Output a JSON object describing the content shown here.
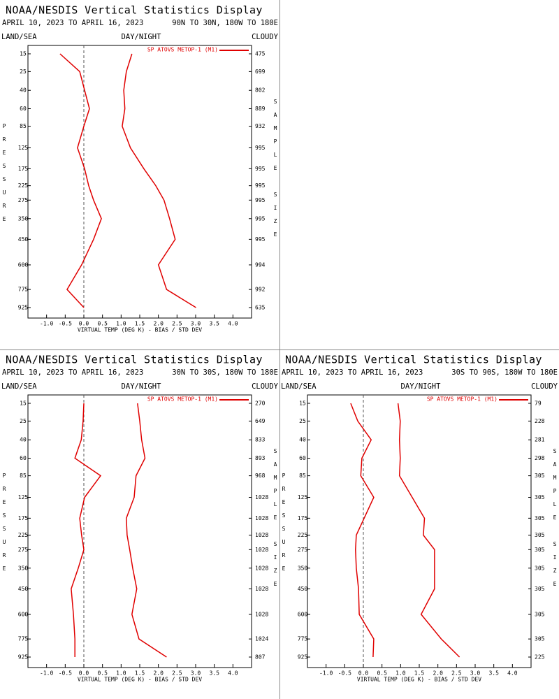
{
  "chart_data": [
    {
      "type": "line",
      "title": "NOAA/NESDIS Vertical Statistics Display",
      "date_range": "APRIL 10, 2023 TO APRIL 16, 2023",
      "region": "90N TO 30N, 180W TO 180E",
      "surface": "LAND/SEA",
      "time_of_day": "DAY/NIGHT",
      "sky": "CLOUDY",
      "y_label": "PRESSURE",
      "y2_label": "SAMPLE SIZE",
      "x_label": "VIRTUAL TEMP (DEG K) - BIAS / STD DEV",
      "categories": [
        15,
        25,
        40,
        60,
        85,
        125,
        175,
        225,
        275,
        350,
        450,
        600,
        775,
        925
      ],
      "sample_size": [
        475,
        699,
        802,
        889,
        932,
        995,
        995,
        995,
        995,
        995,
        995,
        994,
        992,
        635
      ],
      "series": [
        {
          "name": "SP ATOVS METOP-1 (M1)",
          "color": "#e00000",
          "values": [
            -0.64,
            -0.11,
            0.02,
            0.15,
            0.0,
            -0.17,
            0.02,
            0.13,
            0.26,
            0.47,
            0.26,
            -0.06,
            -0.45,
            0.0
          ]
        },
        {
          "color": "#e00000",
          "values": [
            1.29,
            1.14,
            1.07,
            1.1,
            1.03,
            1.25,
            1.61,
            1.93,
            2.15,
            2.3,
            2.45,
            2.0,
            2.22,
            3.01
          ]
        }
      ],
      "xlim": [
        -1.5,
        4.5
      ],
      "xticks": [
        {
          "value": -1,
          "label": "-1.0"
        },
        {
          "value": -0.5,
          "label": "-0.5"
        },
        {
          "value": 0,
          "label": "0.0"
        },
        {
          "value": 0.5,
          "label": "0.5"
        },
        {
          "value": 1,
          "label": "1.0"
        },
        {
          "value": 1.5,
          "label": "1.5"
        },
        {
          "value": 2,
          "label": "2.0"
        },
        {
          "value": 2.5,
          "label": "2.5"
        },
        {
          "value": 3,
          "label": "3.0"
        },
        {
          "value": 3.5,
          "label": "3.5"
        },
        {
          "value": 4,
          "label": "4.0"
        }
      ]
    },
    {
      "type": "line",
      "title": "NOAA/NESDIS Vertical Statistics Display",
      "date_range": "APRIL 10, 2023 TO APRIL 16, 2023",
      "region": "30N TO 30S, 180W TO 180E",
      "surface": "LAND/SEA",
      "time_of_day": "DAY/NIGHT",
      "sky": "CLOUDY",
      "y_label": "PRESSURE",
      "y2_label": "SAMPLE SIZE",
      "x_label": "VIRTUAL TEMP (DEG K) - BIAS / STD DEV",
      "categories": [
        15,
        25,
        40,
        60,
        85,
        125,
        175,
        225,
        275,
        350,
        450,
        600,
        775,
        925
      ],
      "sample_size": [
        270,
        649,
        833,
        893,
        968,
        1028,
        1028,
        1028,
        1028,
        1028,
        1028,
        1028,
        1024,
        807
      ],
      "series": [
        {
          "name": "SP ATOVS METOP-1 (M1)",
          "color": "#e00000",
          "values": [
            0.0,
            -0.02,
            -0.07,
            -0.24,
            0.45,
            0.02,
            -0.11,
            -0.06,
            0.0,
            -0.15,
            -0.34,
            -0.28,
            -0.24,
            -0.24
          ]
        },
        {
          "color": "#e00000",
          "values": [
            1.44,
            1.5,
            1.55,
            1.64,
            1.4,
            1.35,
            1.14,
            1.16,
            1.23,
            1.31,
            1.42,
            1.29,
            1.48,
            2.22
          ]
        }
      ],
      "xlim": [
        -1.5,
        4.5
      ],
      "xticks": [
        {
          "value": -1,
          "label": "-1.0"
        },
        {
          "value": -0.5,
          "label": "-0.5"
        },
        {
          "value": 0,
          "label": "0.0"
        },
        {
          "value": 0.5,
          "label": "0.5"
        },
        {
          "value": 1,
          "label": "1.0"
        },
        {
          "value": 1.5,
          "label": "1.5"
        },
        {
          "value": 2,
          "label": "2.0"
        },
        {
          "value": 2.5,
          "label": "2.5"
        },
        {
          "value": 3,
          "label": "3.0"
        },
        {
          "value": 3.5,
          "label": "3.5"
        },
        {
          "value": 4,
          "label": "4.0"
        }
      ]
    },
    {
      "type": "line",
      "title": "NOAA/NESDIS Vertical Statistics Display",
      "date_range": "APRIL 10, 2023 TO APRIL 16, 2023",
      "region": "30S TO 90S, 180W TO 180E",
      "surface": "LAND/SEA",
      "time_of_day": "DAY/NIGHT",
      "sky": "CLOUDY",
      "y_label": "PRESSURE",
      "y2_label": "SAMPLE SIZE",
      "x_label": "VIRTUAL TEMP (DEG K) - BIAS / STD DEV",
      "categories": [
        15,
        25,
        40,
        60,
        85,
        125,
        175,
        225,
        275,
        350,
        450,
        600,
        775,
        925
      ],
      "sample_size": [
        79,
        228,
        281,
        298,
        305,
        305,
        305,
        305,
        305,
        305,
        305,
        305,
        305,
        225
      ],
      "series": [
        {
          "name": "SP ATOVS METOP-1 (M1)",
          "color": "#e00000",
          "values": [
            -0.34,
            -0.15,
            0.21,
            -0.04,
            -0.07,
            0.28,
            0.02,
            -0.19,
            -0.21,
            -0.19,
            -0.13,
            -0.11,
            0.28,
            0.26
          ]
        },
        {
          "color": "#e00000",
          "values": [
            0.93,
            0.99,
            0.97,
            0.99,
            0.97,
            1.31,
            1.64,
            1.61,
            1.91,
            1.91,
            1.91,
            1.55,
            2.09,
            2.58
          ]
        }
      ],
      "xlim": [
        -1.5,
        4.5
      ],
      "xticks": [
        {
          "value": -1,
          "label": "-1.0"
        },
        {
          "value": -0.5,
          "label": "-0.5"
        },
        {
          "value": 0,
          "label": "0.0"
        },
        {
          "value": 0.5,
          "label": "0.5"
        },
        {
          "value": 1,
          "label": "1.0"
        },
        {
          "value": 1.5,
          "label": "1.5"
        },
        {
          "value": 2,
          "label": "2.0"
        },
        {
          "value": 2.5,
          "label": "2.5"
        },
        {
          "value": 3,
          "label": "3.0"
        },
        {
          "value": 3.5,
          "label": "3.5"
        },
        {
          "value": 4,
          "label": "4.0"
        }
      ]
    }
  ]
}
